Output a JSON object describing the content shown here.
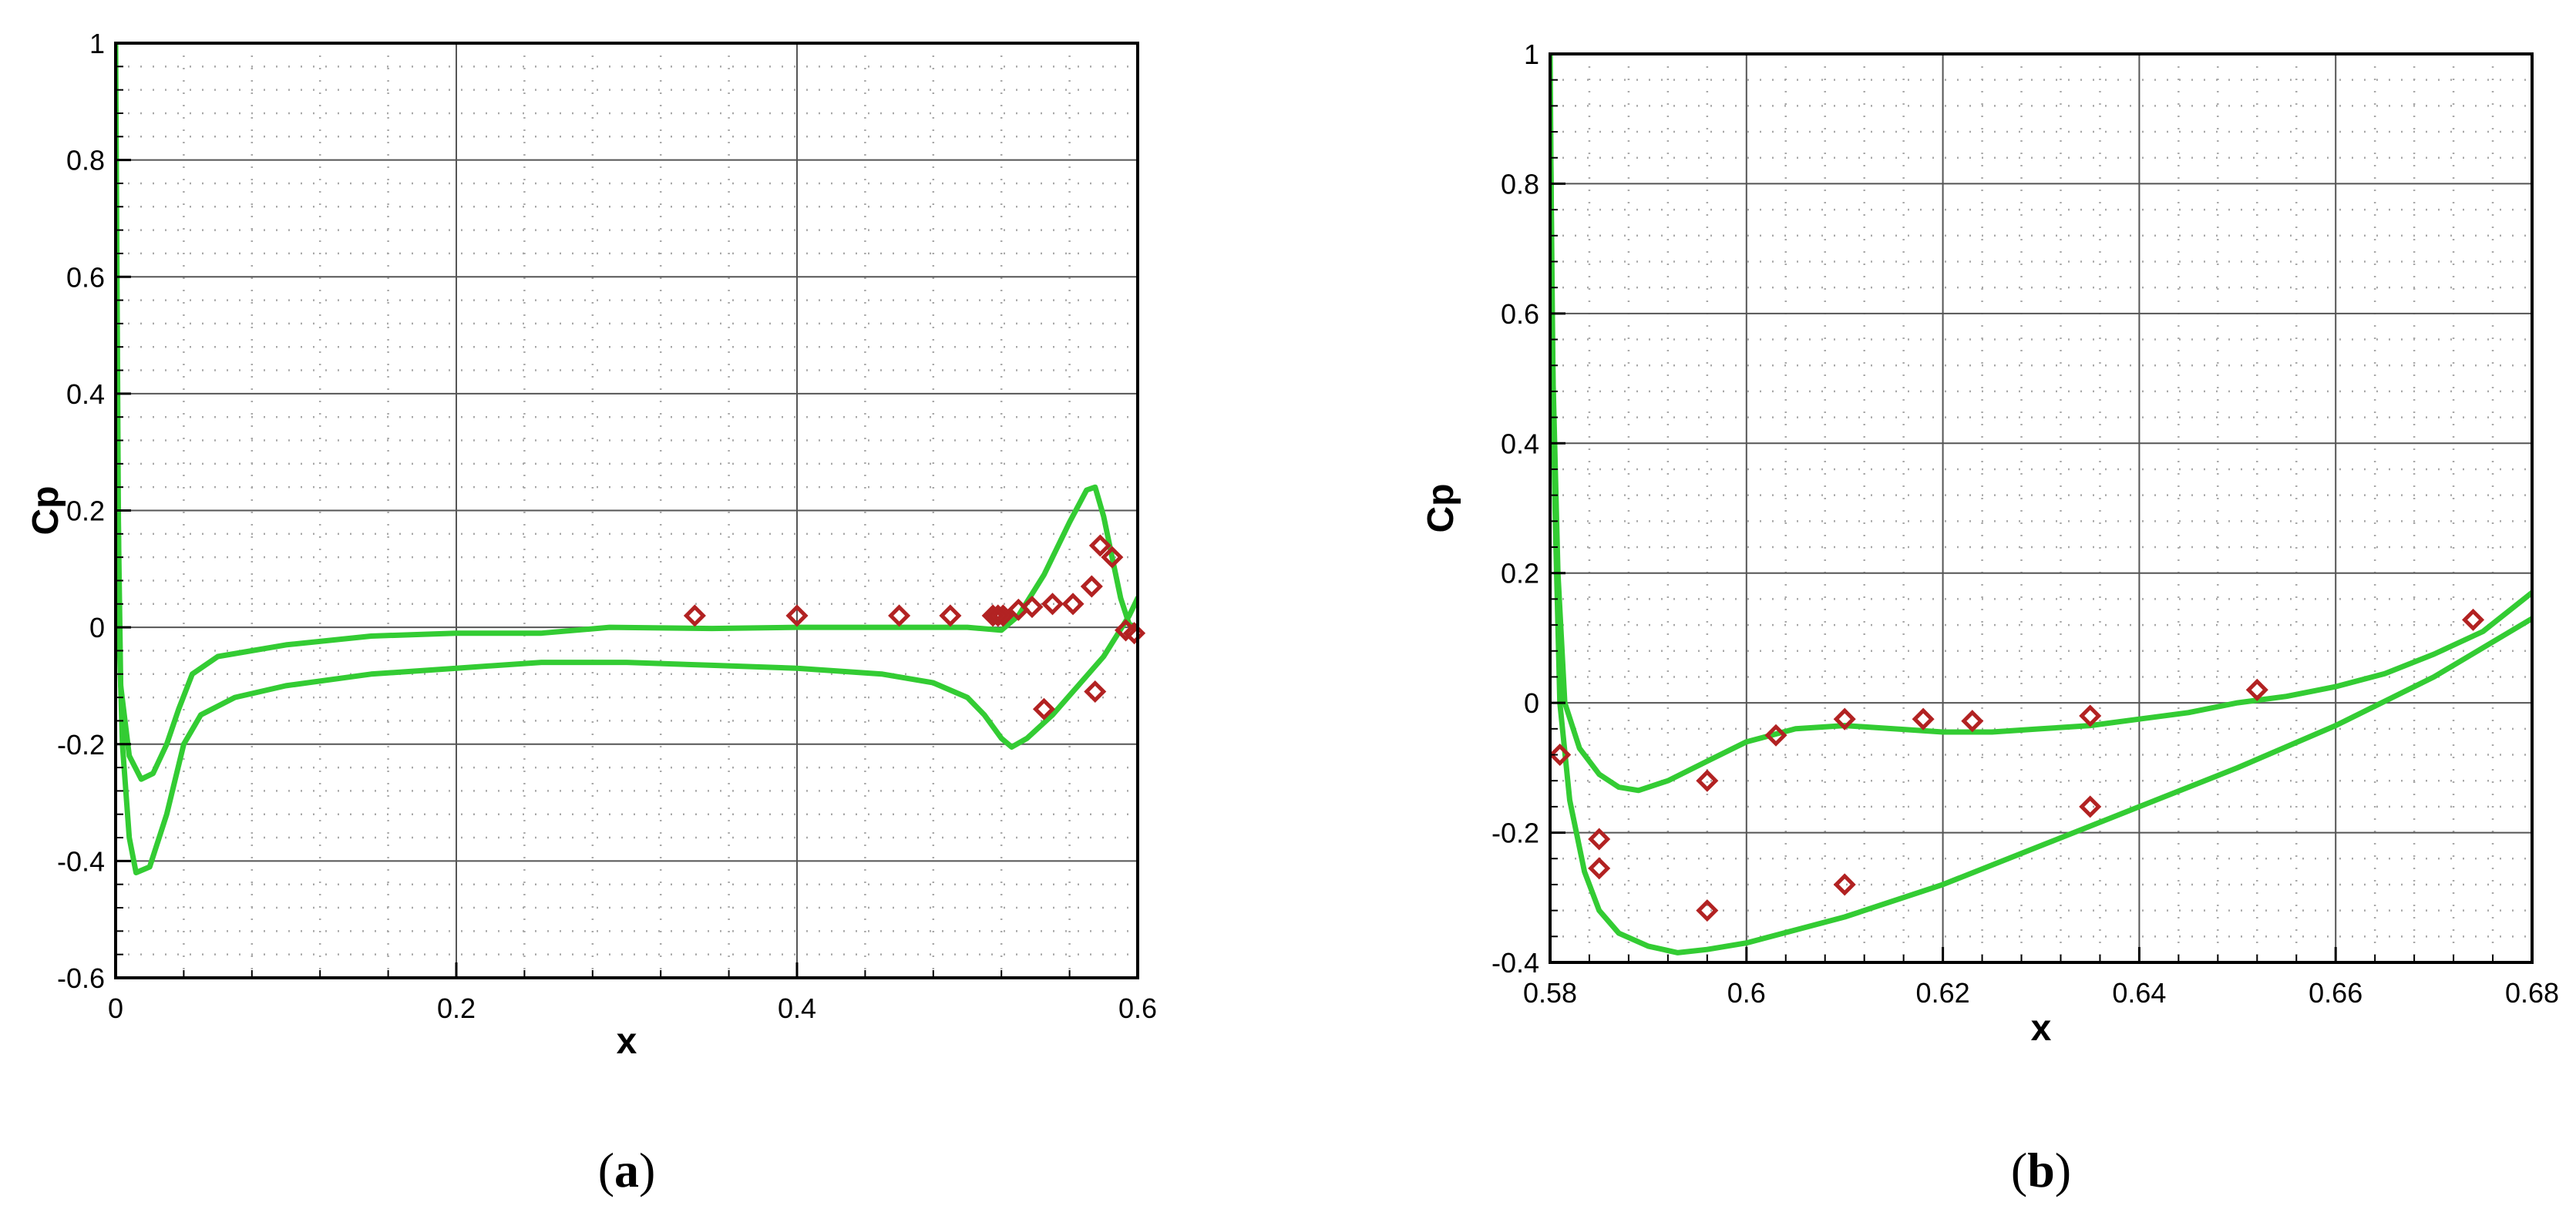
{
  "chart_data": [
    {
      "type": "line",
      "caption_letter": "a",
      "xlabel": "x",
      "ylabel": "Cp",
      "xlim": [
        0,
        0.6
      ],
      "ylim": [
        -0.6,
        1
      ],
      "x_ticks": [
        {
          "value": 0,
          "label": "0"
        },
        {
          "value": 0.2,
          "label": "0.2"
        },
        {
          "value": 0.4,
          "label": "0.4"
        },
        {
          "value": 0.6,
          "label": "0.6"
        }
      ],
      "y_ticks": [
        {
          "value": -0.6,
          "label": "-0.6"
        },
        {
          "value": -0.4,
          "label": "-0.4"
        },
        {
          "value": -0.2,
          "label": "-0.2"
        },
        {
          "value": 0,
          "label": "0"
        },
        {
          "value": 0.2,
          "label": "0.2"
        },
        {
          "value": 0.4,
          "label": "0.4"
        },
        {
          "value": 0.6,
          "label": "0.6"
        },
        {
          "value": 0.8,
          "label": "0.8"
        },
        {
          "value": 1,
          "label": "1"
        }
      ],
      "x_minor_step": 0.04,
      "y_minor_step": 0.04,
      "grid": true,
      "series": [
        {
          "kind": "line",
          "color": "#33cc33",
          "points": [
            [
              0.0,
              1.0
            ],
            [
              0.001,
              0.5
            ],
            [
              0.002,
              0.0
            ],
            [
              0.004,
              -0.2
            ],
            [
              0.008,
              -0.36
            ],
            [
              0.012,
              -0.42
            ],
            [
              0.02,
              -0.41
            ],
            [
              0.03,
              -0.32
            ],
            [
              0.04,
              -0.2
            ],
            [
              0.05,
              -0.15
            ],
            [
              0.07,
              -0.12
            ],
            [
              0.1,
              -0.1
            ],
            [
              0.15,
              -0.08
            ],
            [
              0.2,
              -0.07
            ],
            [
              0.25,
              -0.06
            ],
            [
              0.3,
              -0.06
            ],
            [
              0.35,
              -0.065
            ],
            [
              0.4,
              -0.07
            ],
            [
              0.45,
              -0.08
            ],
            [
              0.48,
              -0.095
            ],
            [
              0.5,
              -0.12
            ],
            [
              0.51,
              -0.15
            ],
            [
              0.52,
              -0.19
            ],
            [
              0.526,
              -0.205
            ],
            [
              0.535,
              -0.19
            ],
            [
              0.55,
              -0.15
            ],
            [
              0.565,
              -0.1
            ],
            [
              0.58,
              -0.05
            ],
            [
              0.595,
              0.02
            ],
            [
              0.6,
              0.05
            ]
          ]
        },
        {
          "kind": "line",
          "color": "#33cc33",
          "points": [
            [
              0.0,
              0.5
            ],
            [
              0.003,
              -0.1
            ],
            [
              0.008,
              -0.22
            ],
            [
              0.015,
              -0.26
            ],
            [
              0.022,
              -0.25
            ],
            [
              0.03,
              -0.2
            ],
            [
              0.037,
              -0.14
            ],
            [
              0.045,
              -0.08
            ],
            [
              0.06,
              -0.05
            ],
            [
              0.1,
              -0.03
            ],
            [
              0.15,
              -0.015
            ],
            [
              0.2,
              -0.01
            ],
            [
              0.25,
              -0.01
            ],
            [
              0.29,
              0.0
            ],
            [
              0.35,
              -0.002
            ],
            [
              0.4,
              0.0
            ],
            [
              0.45,
              0.0
            ],
            [
              0.5,
              0.0
            ],
            [
              0.52,
              -0.005
            ],
            [
              0.53,
              0.02
            ],
            [
              0.545,
              0.09
            ],
            [
              0.56,
              0.18
            ],
            [
              0.57,
              0.235
            ],
            [
              0.575,
              0.24
            ],
            [
              0.58,
              0.19
            ],
            [
              0.585,
              0.12
            ],
            [
              0.59,
              0.05
            ],
            [
              0.595,
              0.005
            ],
            [
              0.6,
              0.0
            ]
          ]
        },
        {
          "kind": "markers",
          "color": "#b22222",
          "marker": "diamond",
          "points": [
            [
              0.34,
              0.02
            ],
            [
              0.4,
              0.02
            ],
            [
              0.46,
              0.02
            ],
            [
              0.49,
              0.02
            ],
            [
              0.515,
              0.02
            ],
            [
              0.518,
              0.02
            ],
            [
              0.521,
              0.02
            ],
            [
              0.53,
              0.03
            ],
            [
              0.538,
              0.035
            ],
            [
              0.545,
              -0.14
            ],
            [
              0.55,
              0.04
            ],
            [
              0.562,
              0.04
            ],
            [
              0.573,
              0.07
            ],
            [
              0.575,
              -0.11
            ],
            [
              0.578,
              0.14
            ],
            [
              0.585,
              0.12
            ],
            [
              0.593,
              -0.005
            ],
            [
              0.598,
              -0.01
            ]
          ]
        }
      ]
    },
    {
      "type": "line",
      "caption_letter": "b",
      "xlabel": "x",
      "ylabel": "Cp",
      "xlim": [
        0.58,
        0.68
      ],
      "ylim": [
        -0.4,
        1
      ],
      "x_ticks": [
        {
          "value": 0.58,
          "label": "0.58"
        },
        {
          "value": 0.6,
          "label": "0.6"
        },
        {
          "value": 0.62,
          "label": "0.62"
        },
        {
          "value": 0.64,
          "label": "0.64"
        },
        {
          "value": 0.66,
          "label": "0.66"
        },
        {
          "value": 0.68,
          "label": "0.68"
        }
      ],
      "y_ticks": [
        {
          "value": -0.4,
          "label": "-0.4"
        },
        {
          "value": -0.2,
          "label": "-0.2"
        },
        {
          "value": 0,
          "label": "0"
        },
        {
          "value": 0.2,
          "label": "0.2"
        },
        {
          "value": 0.4,
          "label": "0.4"
        },
        {
          "value": 0.6,
          "label": "0.6"
        },
        {
          "value": 0.8,
          "label": "0.8"
        },
        {
          "value": 1,
          "label": "1"
        }
      ],
      "x_minor_step": 0.004,
      "y_minor_step": 0.04,
      "grid": true,
      "series": [
        {
          "kind": "line",
          "color": "#33cc33",
          "points": [
            [
              0.58,
              1.0
            ],
            [
              0.5802,
              0.6
            ],
            [
              0.5805,
              0.3
            ],
            [
              0.581,
              0.0
            ],
            [
              0.582,
              -0.15
            ],
            [
              0.5835,
              -0.26
            ],
            [
              0.585,
              -0.32
            ],
            [
              0.587,
              -0.355
            ],
            [
              0.59,
              -0.375
            ],
            [
              0.593,
              -0.385
            ],
            [
              0.596,
              -0.38
            ],
            [
              0.6,
              -0.37
            ],
            [
              0.61,
              -0.33
            ],
            [
              0.62,
              -0.28
            ],
            [
              0.63,
              -0.22
            ],
            [
              0.64,
              -0.16
            ],
            [
              0.65,
              -0.1
            ],
            [
              0.66,
              -0.035
            ],
            [
              0.67,
              0.04
            ],
            [
              0.675,
              0.085
            ],
            [
              0.68,
              0.13
            ]
          ]
        },
        {
          "kind": "line",
          "color": "#33cc33",
          "points": [
            [
              0.58,
              0.95
            ],
            [
              0.5803,
              0.5
            ],
            [
              0.5808,
              0.2
            ],
            [
              0.5815,
              0.0
            ],
            [
              0.583,
              -0.07
            ],
            [
              0.585,
              -0.11
            ],
            [
              0.587,
              -0.13
            ],
            [
              0.589,
              -0.135
            ],
            [
              0.592,
              -0.12
            ],
            [
              0.596,
              -0.09
            ],
            [
              0.6,
              -0.06
            ],
            [
              0.605,
              -0.04
            ],
            [
              0.61,
              -0.035
            ],
            [
              0.62,
              -0.045
            ],
            [
              0.625,
              -0.045
            ],
            [
              0.63,
              -0.04
            ],
            [
              0.635,
              -0.035
            ],
            [
              0.64,
              -0.025
            ],
            [
              0.645,
              -0.015
            ],
            [
              0.65,
              0.0
            ],
            [
              0.655,
              0.01
            ],
            [
              0.66,
              0.025
            ],
            [
              0.665,
              0.045
            ],
            [
              0.67,
              0.075
            ],
            [
              0.675,
              0.11
            ],
            [
              0.68,
              0.17
            ]
          ]
        },
        {
          "kind": "markers",
          "color": "#b22222",
          "marker": "diamond",
          "points": [
            [
              0.581,
              -0.08
            ],
            [
              0.585,
              -0.21
            ],
            [
              0.585,
              -0.255
            ],
            [
              0.596,
              -0.12
            ],
            [
              0.596,
              -0.32
            ],
            [
              0.603,
              -0.05
            ],
            [
              0.61,
              -0.025
            ],
            [
              0.61,
              -0.28
            ],
            [
              0.618,
              -0.025
            ],
            [
              0.623,
              -0.028
            ],
            [
              0.635,
              -0.02
            ],
            [
              0.635,
              -0.16
            ],
            [
              0.652,
              0.02
            ],
            [
              0.674,
              0.128
            ]
          ]
        }
      ]
    }
  ]
}
